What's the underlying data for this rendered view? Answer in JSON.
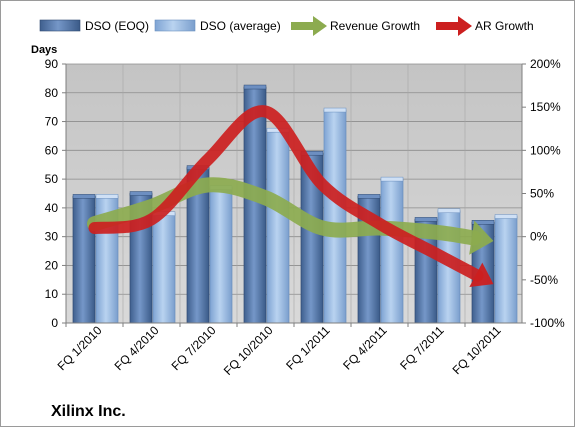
{
  "chart_data": {
    "type": "bar",
    "title": "Xilinx Inc.",
    "ylabel": "Days",
    "ylim": [
      0,
      90
    ],
    "y2lim": [
      -100,
      200
    ],
    "categories": [
      "FQ 1/2010",
      "FQ 4/2010",
      "FQ 7/2010",
      "FQ 10/2010",
      "FQ 1/2011",
      "FQ 4/2011",
      "FQ 7/2011",
      "FQ 10/2011"
    ],
    "yticks": [
      "0",
      "10",
      "20",
      "30",
      "40",
      "50",
      "60",
      "70",
      "80",
      "90"
    ],
    "y2ticks": [
      "-100%",
      "-50%",
      "0%",
      "50%",
      "100%",
      "150%",
      "200%"
    ],
    "legend_position": "top",
    "grid": true,
    "series": [
      {
        "name": "DSO (EOQ)",
        "kind": "bar",
        "color": "#4a6c9e",
        "values": [
          44,
          45,
          54,
          82,
          59,
          44,
          36,
          35
        ]
      },
      {
        "name": "DSO (average)",
        "kind": "bar",
        "color": "#8fb3df",
        "values": [
          44,
          38,
          47,
          67,
          74,
          50,
          39,
          37
        ]
      },
      {
        "name": "Revenue Growth",
        "kind": "arrow",
        "axis": "secondary",
        "color": "#8cab4f",
        "values": [
          15,
          35,
          60,
          45,
          10,
          10,
          5,
          -5
        ]
      },
      {
        "name": "AR Growth",
        "kind": "arrow",
        "axis": "secondary",
        "color": "#cc1f1f",
        "values": [
          10,
          20,
          90,
          145,
          60,
          15,
          -20,
          -55
        ]
      }
    ]
  }
}
